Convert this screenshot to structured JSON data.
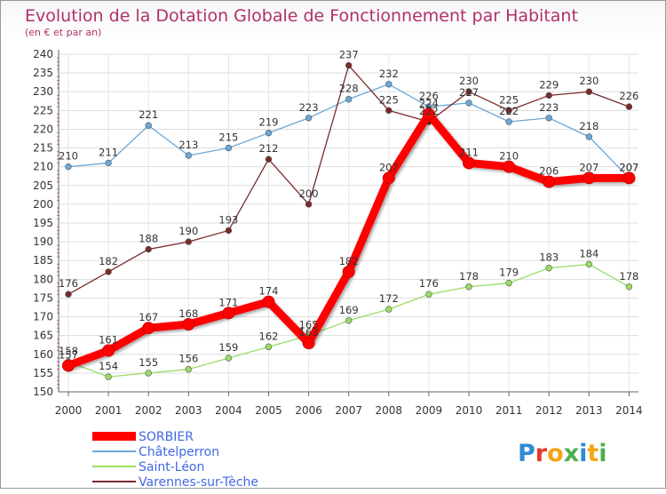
{
  "chart_data": {
    "type": "line",
    "title": "Evolution de la Dotation Globale de Fonctionnement par Habitant",
    "subtitle": "(en € et par an)",
    "x": [
      "2000",
      "2001",
      "2002",
      "2003",
      "2004",
      "2005",
      "2006",
      "2007",
      "2008",
      "2009",
      "2010",
      "2011",
      "2012",
      "2013",
      "2014"
    ],
    "ylim": [
      150,
      240
    ],
    "yticks": [
      150,
      155,
      160,
      165,
      170,
      175,
      180,
      185,
      190,
      195,
      200,
      205,
      210,
      215,
      220,
      225,
      230,
      235,
      240
    ],
    "grid": true,
    "legend_position": "bottom-left",
    "series": [
      {
        "name": "SORBIER",
        "color": "#ff0000",
        "values": [
          157,
          161,
          167,
          168,
          171,
          174,
          163,
          182,
          207,
          224,
          211,
          210,
          206,
          207,
          207
        ]
      },
      {
        "name": "Châtelperron",
        "color": "#6aa8d8",
        "values": [
          210,
          211,
          221,
          213,
          215,
          219,
          223,
          228,
          232,
          226,
          227,
          222,
          223,
          218,
          207
        ]
      },
      {
        "name": "Saint-Léon",
        "color": "#99dd66",
        "values": [
          158,
          154,
          155,
          156,
          159,
          162,
          165,
          169,
          172,
          176,
          178,
          179,
          183,
          184,
          178
        ]
      },
      {
        "name": "Varennes-sur-Tèche",
        "color": "#7a2a2a",
        "values": [
          176,
          182,
          188,
          190,
          193,
          212,
          200,
          237,
          225,
          222,
          230,
          225,
          229,
          230,
          226
        ]
      }
    ]
  },
  "brand": {
    "text": "Proxiti",
    "letters": [
      "P",
      "r",
      "o",
      "x",
      "i",
      "t",
      "i"
    ],
    "colors": [
      "#2e8bd6",
      "#e8392c",
      "#f4a614",
      "#4caf50",
      "#2e8bd6",
      "#f4a614",
      "#4caf50"
    ]
  }
}
